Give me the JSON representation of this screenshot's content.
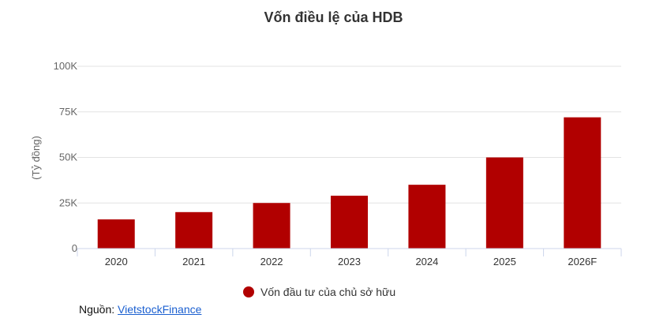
{
  "chart_data": {
    "type": "bar",
    "title": "Vốn điều lệ của HDB",
    "ylabel": "(Tỷ đồng)",
    "xlabel": "",
    "categories": [
      "2020",
      "2021",
      "2022",
      "2023",
      "2024",
      "2025",
      "2026F"
    ],
    "series": [
      {
        "name": "Vốn đầu tư của chủ sở hữu",
        "values": [
          16000,
          20000,
          25000,
          29000,
          35000,
          50000,
          72000
        ]
      }
    ],
    "ylim": [
      0,
      100000
    ],
    "yticks": [
      {
        "value": 0,
        "label": "0"
      },
      {
        "value": 25000,
        "label": "25K"
      },
      {
        "value": 50000,
        "label": "50K"
      },
      {
        "value": 75000,
        "label": "75K"
      },
      {
        "value": 100000,
        "label": "100K"
      }
    ],
    "grid": true,
    "legend_position": "bottom",
    "bar_color": "#b10000"
  },
  "source": {
    "prefix": "Nguồn: ",
    "link_text": "VietstockFinance"
  }
}
